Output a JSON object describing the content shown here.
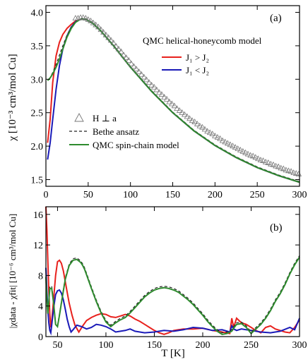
{
  "chart_data": [
    {
      "type": "line",
      "panel_label": "(a)",
      "ylabel": "χ  [10⁻³ cm³/mol Cu]",
      "xlim": [
        0,
        300
      ],
      "ylim": [
        1.4,
        4.1
      ],
      "xticks": [
        0,
        50,
        100,
        150,
        200,
        250,
        300
      ],
      "xtick_labels": [
        "0",
        "50",
        "100",
        "150",
        "200",
        "250",
        "300"
      ],
      "yticks": [
        1.5,
        2.0,
        2.5,
        3.0,
        3.5,
        4.0
      ],
      "ytick_labels": [
        "1.5",
        "2.0",
        "2.5",
        "3.0",
        "3.5",
        "4.0"
      ],
      "legend_title": "QMC helical-honeycomb model",
      "series": [
        {
          "name": "J₁ > J₂",
          "color": "#e8211d",
          "style": "solid",
          "x": [
            2,
            5,
            8,
            12,
            16,
            20,
            25,
            30,
            35,
            40,
            44,
            48,
            55,
            65,
            80,
            100,
            125,
            150,
            175,
            200,
            225,
            250,
            275,
            300
          ],
          "y": [
            2.05,
            2.4,
            2.95,
            3.35,
            3.55,
            3.67,
            3.76,
            3.82,
            3.87,
            3.89,
            3.9,
            3.89,
            3.84,
            3.72,
            3.5,
            3.18,
            2.82,
            2.5,
            2.23,
            2.01,
            1.83,
            1.68,
            1.56,
            1.46
          ]
        },
        {
          "name": "J₁ < J₂",
          "color": "#1a1ab8",
          "style": "solid",
          "x": [
            2,
            5,
            8,
            12,
            16,
            20,
            25,
            30,
            35,
            40,
            44,
            48,
            55,
            65,
            80,
            100,
            125,
            150,
            175,
            200,
            225,
            250,
            275,
            300
          ],
          "y": [
            1.8,
            2.05,
            2.4,
            2.85,
            3.2,
            3.45,
            3.65,
            3.78,
            3.86,
            3.89,
            3.9,
            3.89,
            3.84,
            3.72,
            3.5,
            3.18,
            2.82,
            2.5,
            2.23,
            2.01,
            1.83,
            1.68,
            1.56,
            1.46
          ]
        },
        {
          "name": "Bethe ansatz",
          "color": "#222222",
          "style": "dashed",
          "x": [
            4,
            8,
            12,
            16,
            20,
            25,
            30,
            35,
            40,
            44,
            48,
            55,
            65,
            80,
            100,
            125,
            150,
            175,
            200,
            225,
            250,
            275,
            300
          ],
          "y": [
            3.0,
            3.1,
            3.22,
            3.36,
            3.5,
            3.66,
            3.78,
            3.86,
            3.9,
            3.91,
            3.9,
            3.85,
            3.73,
            3.51,
            3.19,
            2.83,
            2.51,
            2.24,
            2.02,
            1.84,
            1.69,
            1.57,
            1.47
          ]
        },
        {
          "name": "QMC spin-chain model",
          "color": "#2e8b2e",
          "style": "solid",
          "x": [
            2,
            5,
            8,
            12,
            16,
            20,
            25,
            30,
            35,
            40,
            44,
            48,
            55,
            65,
            80,
            100,
            125,
            150,
            175,
            200,
            225,
            250,
            275,
            300
          ],
          "y": [
            2.98,
            3.02,
            3.08,
            3.18,
            3.3,
            3.45,
            3.63,
            3.76,
            3.85,
            3.89,
            3.9,
            3.89,
            3.84,
            3.72,
            3.5,
            3.18,
            2.82,
            2.5,
            2.23,
            2.01,
            1.83,
            1.68,
            1.56,
            1.46
          ]
        },
        {
          "name": "H ⊥ a",
          "color": "#777777",
          "style": "marker-triangle",
          "x": [
            35,
            38,
            41,
            44,
            47,
            50,
            53,
            56,
            59,
            62,
            65,
            68,
            71,
            74,
            77,
            80,
            83,
            86,
            89,
            92,
            95,
            98,
            101,
            104,
            107,
            110,
            113,
            116,
            119,
            122,
            125,
            128,
            131,
            134,
            137,
            140,
            143,
            146,
            149,
            152,
            155,
            158,
            161,
            164,
            167,
            170,
            173,
            176,
            179,
            182,
            185,
            188,
            191,
            194,
            197,
            200,
            203,
            206,
            209,
            212,
            215,
            218,
            221,
            224,
            227,
            230,
            233,
            236,
            239,
            242,
            245,
            248,
            251,
            254,
            257,
            260,
            263,
            266,
            269,
            272,
            275,
            278,
            281,
            284,
            287,
            290,
            293,
            296,
            299
          ],
          "y": [
            3.91,
            3.91,
            3.92,
            3.92,
            3.91,
            3.89,
            3.87,
            3.84,
            3.81,
            3.78,
            3.74,
            3.7,
            3.66,
            3.62,
            3.58,
            3.54,
            3.49,
            3.45,
            3.41,
            3.36,
            3.32,
            3.28,
            3.23,
            3.19,
            3.15,
            3.11,
            3.07,
            3.03,
            2.99,
            2.95,
            2.91,
            2.88,
            2.84,
            2.8,
            2.77,
            2.73,
            2.7,
            2.66,
            2.63,
            2.6,
            2.56,
            2.53,
            2.5,
            2.47,
            2.44,
            2.41,
            2.38,
            2.36,
            2.33,
            2.3,
            2.28,
            2.25,
            2.22,
            2.2,
            2.18,
            2.15,
            2.13,
            2.11,
            2.08,
            2.06,
            2.04,
            2.02,
            2.0,
            1.98,
            1.96,
            1.94,
            1.92,
            1.9,
            1.88,
            1.86,
            1.85,
            1.83,
            1.81,
            1.79,
            1.78,
            1.76,
            1.75,
            1.73,
            1.72,
            1.7,
            1.69,
            1.67,
            1.66,
            1.64,
            1.63,
            1.62,
            1.6,
            1.59,
            1.58
          ]
        }
      ]
    },
    {
      "type": "line",
      "panel_label": "(b)",
      "xlabel": "T [K]",
      "ylabel": "|χdata - χfit| [10⁻⁶ cm³/mol Cu]",
      "xlim": [
        38,
        300
      ],
      "ylim": [
        0,
        17
      ],
      "xticks": [
        50,
        100,
        150,
        200,
        250,
        300
      ],
      "xtick_labels": [
        "50",
        "100",
        "150",
        "200",
        "250",
        "300"
      ],
      "yticks": [
        0,
        4,
        8,
        12,
        16
      ],
      "ytick_labels": [
        "0",
        "4",
        "8",
        "12",
        "16"
      ],
      "series": [
        {
          "name": "J₁ > J₂",
          "color": "#e8211d",
          "style": "solid",
          "x": [
            38,
            39,
            40,
            41,
            42,
            43,
            44,
            46,
            48,
            50,
            52,
            54,
            56,
            58,
            60,
            62,
            65,
            68,
            72,
            76,
            80,
            85,
            90,
            95,
            100,
            105,
            110,
            115,
            120,
            125,
            130,
            135,
            140,
            145,
            150,
            155,
            160,
            165,
            170,
            175,
            180,
            190,
            200,
            210,
            220,
            228,
            230,
            232,
            235,
            240,
            245,
            250,
            255,
            260,
            265,
            270,
            275,
            280,
            285,
            290,
            295,
            300
          ],
          "y": [
            17,
            14,
            10,
            6,
            3,
            1.2,
            2,
            5,
            8,
            9.8,
            10,
            9.6,
            8.6,
            7.2,
            5.8,
            4.4,
            2.8,
            1.5,
            0.6,
            1.4,
            2.1,
            2.5,
            2.8,
            3.0,
            2.9,
            2.6,
            2.5,
            2.7,
            2.9,
            2.7,
            2.3,
            2.0,
            1.6,
            1.2,
            0.8,
            0.5,
            0.3,
            0.5,
            0.8,
            0.9,
            1.0,
            1.0,
            1.1,
            0.8,
            0.6,
            0.4,
            2.4,
            1.2,
            2.4,
            1.8,
            1.6,
            1.2,
            0.8,
            0.5,
            1.2,
            1.4,
            1.0,
            0.8,
            0.6,
            0.5,
            1.2,
            2.2
          ]
        },
        {
          "name": "J₁ < J₂",
          "color": "#1a1ab8",
          "style": "solid",
          "x": [
            38,
            39,
            40,
            41,
            42,
            43,
            44,
            46,
            48,
            50,
            52,
            54,
            56,
            58,
            60,
            62,
            64,
            66,
            68,
            70,
            75,
            80,
            85,
            90,
            95,
            100,
            105,
            110,
            115,
            120,
            125,
            130,
            140,
            150,
            160,
            170,
            180,
            190,
            200,
            210,
            220,
            228,
            230,
            232,
            235,
            240,
            245,
            250,
            260,
            270,
            280,
            290,
            295,
            300
          ],
          "y": [
            9,
            6,
            3.5,
            1.8,
            0.8,
            0.5,
            1.5,
            3.8,
            5.5,
            6.0,
            6.1,
            5.7,
            4.8,
            3.6,
            2.3,
            1.3,
            0.6,
            0.9,
            1.2,
            1.5,
            1.3,
            1.0,
            1.2,
            1.6,
            1.5,
            1.3,
            1.0,
            0.6,
            0.7,
            0.8,
            1.0,
            0.7,
            0.5,
            0.6,
            0.8,
            0.7,
            0.9,
            1.2,
            1.1,
            0.8,
            0.9,
            0.6,
            1.4,
            1.0,
            0.8,
            1.0,
            0.9,
            0.8,
            0.6,
            0.5,
            0.7,
            1.2,
            0.9,
            2.4
          ]
        },
        {
          "name": "Bethe ansatz",
          "color": "#222222",
          "style": "dashed",
          "x": [
            38,
            39,
            40,
            41,
            42,
            44,
            46,
            48,
            50,
            52,
            55,
            58,
            62,
            66,
            70,
            72,
            74,
            76,
            78,
            80,
            85,
            90,
            95,
            100,
            105,
            110,
            115,
            120,
            125,
            130,
            135,
            140,
            145,
            150,
            155,
            160,
            165,
            170,
            175,
            180,
            185,
            190,
            195,
            200,
            205,
            210,
            215,
            220,
            225,
            230,
            232,
            235,
            240,
            245,
            250,
            255,
            260,
            265,
            270,
            275,
            280,
            285,
            290,
            295,
            300
          ],
          "y": [
            8,
            5,
            3.2,
            4.8,
            6.5,
            6.6,
            4.5,
            1.8,
            1.5,
            3.0,
            5.4,
            7.7,
            9.5,
            10.2,
            10.3,
            10.1,
            9.9,
            9.5,
            9.0,
            8.3,
            6.5,
            4.8,
            3.3,
            2.1,
            1.5,
            2.0,
            2.4,
            2.7,
            3.3,
            4.0,
            4.7,
            5.4,
            5.9,
            6.3,
            6.5,
            6.6,
            6.5,
            6.3,
            6.0,
            5.5,
            5.0,
            4.4,
            3.7,
            3.0,
            2.2,
            1.5,
            0.9,
            0.5,
            0.6,
            0.9,
            1.3,
            1.8,
            1.9,
            1.4,
            0.6,
            1.2,
            1.8,
            2.6,
            3.6,
            4.8,
            5.8,
            7.0,
            8.4,
            9.6,
            10.6
          ]
        },
        {
          "name": "QMC spin-chain model",
          "color": "#2e8b2e",
          "style": "solid",
          "x": [
            38,
            39,
            40,
            41,
            42,
            44,
            46,
            48,
            50,
            52,
            55,
            58,
            62,
            66,
            70,
            72,
            74,
            76,
            78,
            80,
            85,
            90,
            95,
            100,
            105,
            110,
            115,
            120,
            125,
            130,
            135,
            140,
            145,
            150,
            155,
            160,
            165,
            170,
            175,
            180,
            185,
            190,
            195,
            200,
            205,
            210,
            215,
            220,
            225,
            230,
            232,
            235,
            240,
            245,
            250,
            255,
            260,
            265,
            270,
            275,
            280,
            285,
            290,
            295,
            300
          ],
          "y": [
            7.8,
            4.8,
            3.0,
            4.6,
            6.3,
            6.3,
            4.3,
            1.6,
            1.3,
            2.8,
            5.2,
            7.5,
            9.3,
            10.0,
            10.1,
            9.9,
            9.7,
            9.3,
            8.8,
            8.1,
            6.3,
            4.6,
            3.1,
            1.9,
            1.3,
            1.8,
            2.2,
            2.5,
            3.1,
            3.8,
            4.5,
            5.2,
            5.7,
            6.1,
            6.3,
            6.4,
            6.3,
            6.1,
            5.8,
            5.3,
            4.8,
            4.2,
            3.5,
            2.8,
            2.0,
            1.3,
            0.7,
            0.3,
            0.4,
            0.7,
            1.1,
            1.6,
            1.7,
            1.2,
            0.4,
            1.0,
            1.6,
            2.4,
            3.4,
            4.6,
            5.6,
            6.8,
            8.2,
            9.4,
            10.4
          ]
        }
      ]
    }
  ]
}
